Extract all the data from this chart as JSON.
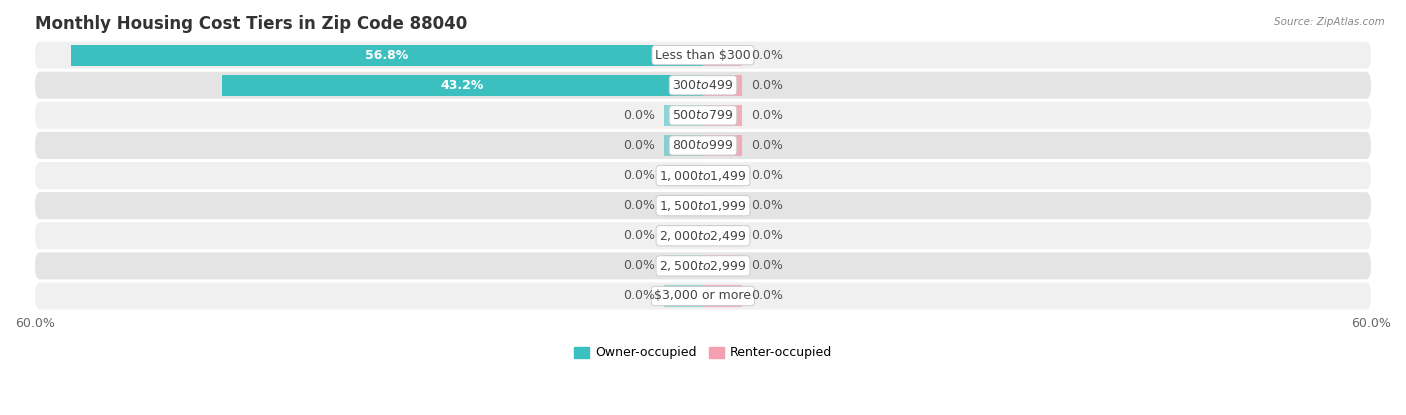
{
  "title": "Monthly Housing Cost Tiers in Zip Code 88040",
  "source": "Source: ZipAtlas.com",
  "categories": [
    "Less than $300",
    "$300 to $499",
    "$500 to $799",
    "$800 to $999",
    "$1,000 to $1,499",
    "$1,500 to $1,999",
    "$2,000 to $2,499",
    "$2,500 to $2,999",
    "$3,000 or more"
  ],
  "owner_values": [
    56.8,
    43.2,
    0.0,
    0.0,
    0.0,
    0.0,
    0.0,
    0.0,
    0.0
  ],
  "renter_values": [
    0.0,
    0.0,
    0.0,
    0.0,
    0.0,
    0.0,
    0.0,
    0.0,
    0.0
  ],
  "owner_color": "#3BBFBF",
  "renter_color": "#F4A0B0",
  "row_bg_even": "#F0F0F0",
  "row_bg_odd": "#E4E4E4",
  "axis_limit": 60.0,
  "stub_size": 3.5,
  "title_fontsize": 12,
  "label_fontsize": 9,
  "tick_fontsize": 9,
  "category_fontsize": 9,
  "background_color": "#FFFFFF",
  "legend_labels": [
    "Owner-occupied",
    "Renter-occupied"
  ]
}
